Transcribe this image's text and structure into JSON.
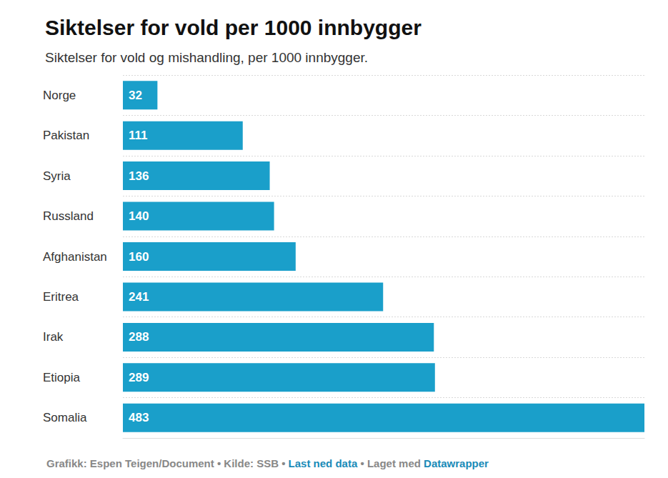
{
  "chart_data": {
    "type": "bar",
    "orientation": "horizontal",
    "title": "Siktelser for vold per 1000 innbygger",
    "subtitle": "Siktelser for vold og mishandling, per 1000 innbygger.",
    "source": "Grafikk: Espen Teigen/Document • Kilde: SSB • Last ned data • Laget med Datawrapper",
    "categories": [
      "Norge",
      "Pakistan",
      "Syria",
      "Russland",
      "Afghanistan",
      "Eritrea",
      "Irak",
      "Etiopia",
      "Somalia"
    ],
    "values": [
      32,
      111,
      136,
      140,
      160,
      241,
      288,
      289,
      483
    ],
    "color": "#1a9fca",
    "xlim": [
      0,
      483
    ],
    "data_labels": true,
    "tick_labels": false
  }
}
